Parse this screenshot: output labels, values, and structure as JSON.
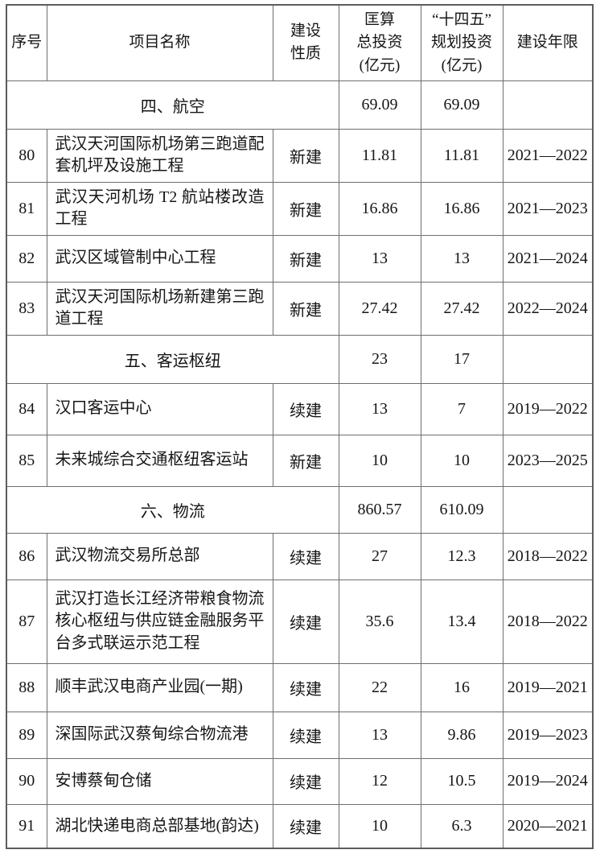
{
  "colors": {
    "background": "#ffffff",
    "border": "#6e6e6e",
    "text": "#161616"
  },
  "table": {
    "headers": {
      "no": "序号",
      "name": "项目名称",
      "nature": "建设\n性质",
      "total": "匡算\n总投资\n(亿元)",
      "plan": "“十四五”\n规划投资\n(亿元)",
      "years": "建设年限"
    },
    "rows": [
      {
        "type": "section",
        "name": "四、航空",
        "total": "69.09",
        "plan": "69.09",
        "years": ""
      },
      {
        "type": "item",
        "no": "80",
        "name": "武汉天河国际机场第三跑道配套机坪及设施工程",
        "nature": "新建",
        "total": "11.81",
        "plan": "11.81",
        "years": "2021—2022"
      },
      {
        "type": "item",
        "no": "81",
        "name": "武汉天河机场 T2 航站楼改造工程",
        "nature": "新建",
        "total": "16.86",
        "plan": "16.86",
        "years": "2021—2023"
      },
      {
        "type": "item",
        "no": "82",
        "name": "武汉区域管制中心工程",
        "nature": "新建",
        "total": "13",
        "plan": "13",
        "years": "2021—2024"
      },
      {
        "type": "item",
        "no": "83",
        "name": "武汉天河国际机场新建第三跑道工程",
        "nature": "新建",
        "total": "27.42",
        "plan": "27.42",
        "years": "2022—2024"
      },
      {
        "type": "section",
        "name": "五、客运枢纽",
        "total": "23",
        "plan": "17",
        "years": ""
      },
      {
        "type": "item",
        "no": "84",
        "name": "汉口客运中心",
        "nature": "续建",
        "total": "13",
        "plan": "7",
        "years": "2019—2022"
      },
      {
        "type": "item",
        "no": "85",
        "name": "未来城综合交通枢纽客运站",
        "nature": "新建",
        "total": "10",
        "plan": "10",
        "years": "2023—2025"
      },
      {
        "type": "section",
        "name": "六、物流",
        "total": "860.57",
        "plan": "610.09",
        "years": ""
      },
      {
        "type": "item",
        "no": "86",
        "name": "武汉物流交易所总部",
        "nature": "续建",
        "total": "27",
        "plan": "12.3",
        "years": "2018—2022"
      },
      {
        "type": "item",
        "no": "87",
        "name": "武汉打造长江经济带粮食物流核心枢纽与供应链金融服务平台多式联运示范工程",
        "nature": "续建",
        "total": "35.6",
        "plan": "13.4",
        "years": "2018—2022"
      },
      {
        "type": "item",
        "no": "88",
        "name": "顺丰武汉电商产业园(一期)",
        "nature": "续建",
        "total": "22",
        "plan": "16",
        "years": "2019—2021"
      },
      {
        "type": "item",
        "no": "89",
        "name": "深国际武汉蔡甸综合物流港",
        "nature": "续建",
        "total": "13",
        "plan": "9.86",
        "years": "2019—2023"
      },
      {
        "type": "item",
        "no": "90",
        "name": "安博蔡甸仓储",
        "nature": "续建",
        "total": "12",
        "plan": "10.5",
        "years": "2019—2024"
      },
      {
        "type": "item",
        "no": "91",
        "name": "湖北快递电商总部基地(韵达)",
        "nature": "续建",
        "total": "10",
        "plan": "6.3",
        "years": "2020—2021"
      }
    ]
  }
}
